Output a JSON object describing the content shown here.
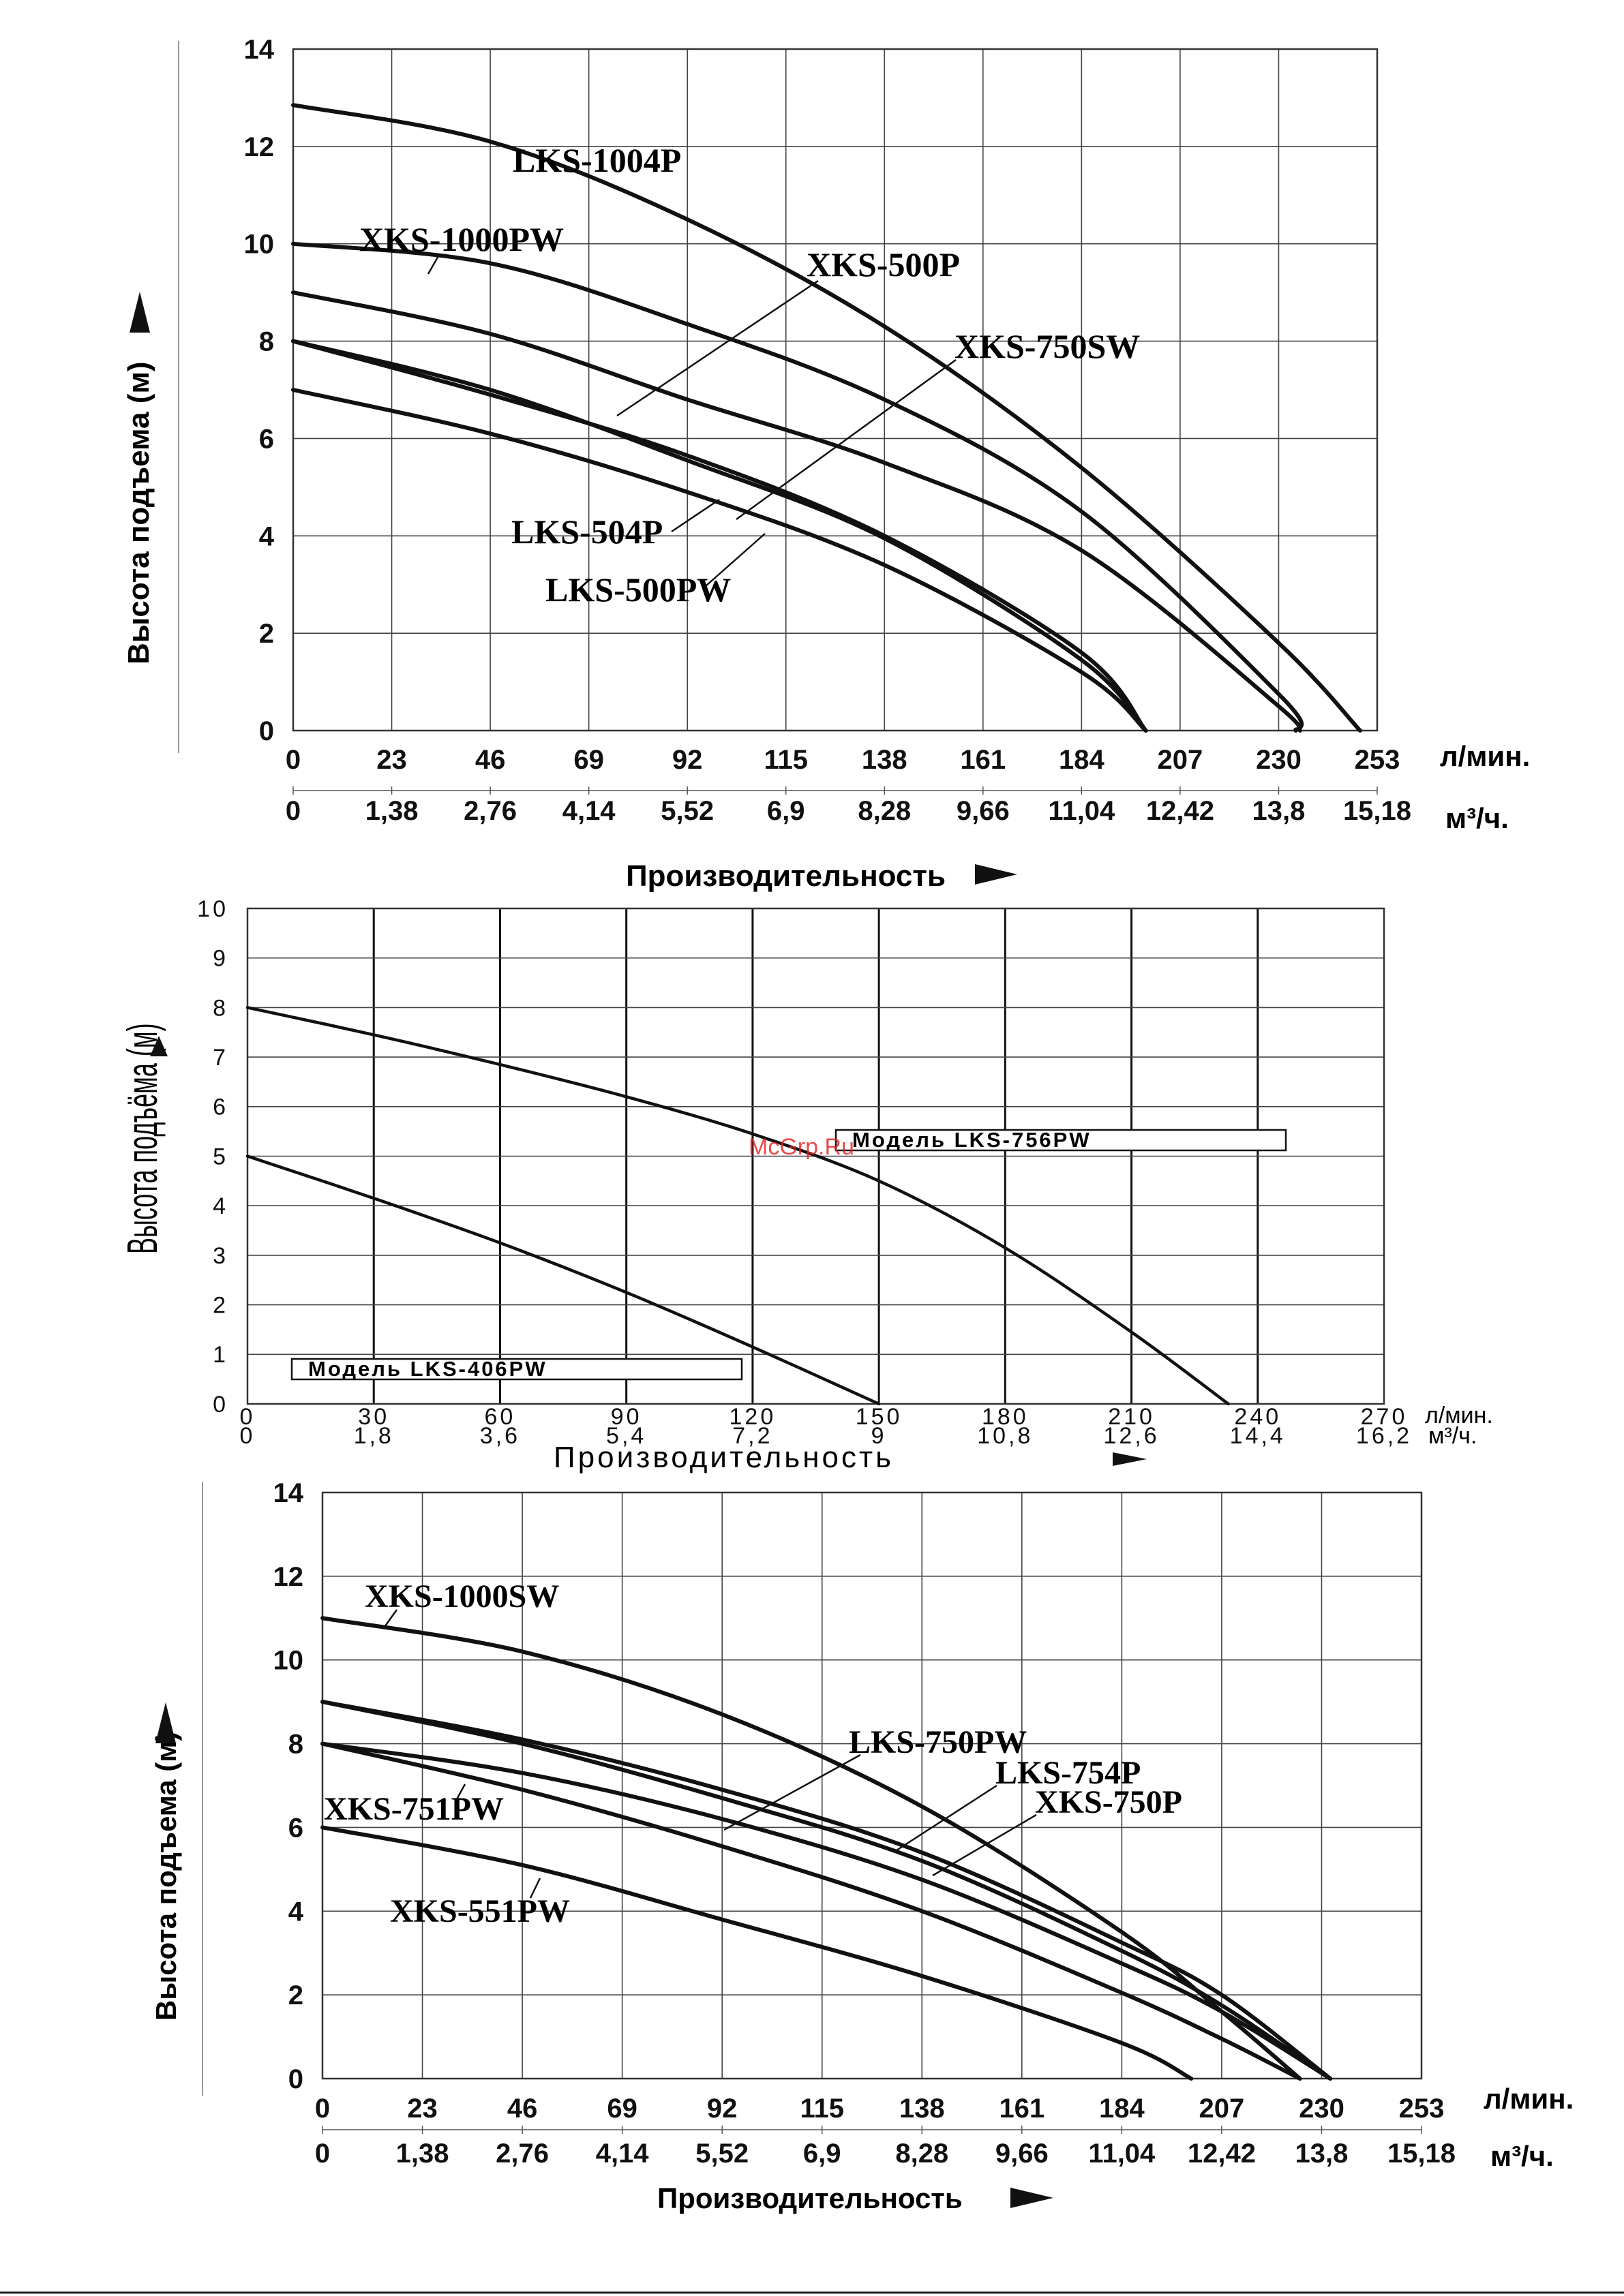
{
  "watermark": "McGrp.Ru",
  "chart_data": [
    {
      "type": "line",
      "ylabel": "Высота подъема (м)",
      "xlabel": "Производительность",
      "x_unit_primary": "л/мин.",
      "x_unit_secondary": "м³/ч.",
      "x_ticks_primary": [
        "0",
        "23",
        "46",
        "69",
        "92",
        "115",
        "138",
        "161",
        "184",
        "207",
        "230",
        "253"
      ],
      "x_ticks_secondary": [
        "0",
        "1,38",
        "2,76",
        "4,14",
        "5,52",
        "6,9",
        "8,28",
        "9,66",
        "11,04",
        "12,42",
        "13,8",
        "15,18"
      ],
      "y_ticks": [
        "0",
        "2",
        "4",
        "6",
        "8",
        "10",
        "12",
        "14"
      ],
      "xlim": [
        0,
        253
      ],
      "ylim": [
        0,
        14
      ],
      "series": [
        {
          "name": "LKS-1004P",
          "x": [
            0,
            46,
            92,
            138,
            184,
            230,
            249
          ],
          "y": [
            12.85,
            12.1,
            10.5,
            8.3,
            5.4,
            1.8,
            0
          ]
        },
        {
          "name": "XKS-1000PW",
          "x": [
            0,
            46,
            92,
            138,
            184,
            230,
            235
          ],
          "y": [
            10.0,
            9.6,
            8.35,
            6.8,
            4.5,
            0.75,
            0
          ]
        },
        {
          "name": "XKS-500P",
          "x": [
            0,
            46,
            92,
            138,
            184,
            230,
            234
          ],
          "y": [
            9.0,
            8.15,
            6.8,
            5.5,
            3.7,
            0.5,
            0
          ]
        },
        {
          "name": "XKS-750SW",
          "x": [
            0,
            46,
            92,
            138,
            184,
            199
          ],
          "y": [
            8.0,
            6.9,
            5.65,
            4.0,
            1.6,
            0
          ]
        },
        {
          "name": "LKS-504P",
          "x": [
            0,
            46,
            92,
            138,
            184,
            199
          ],
          "y": [
            8.0,
            7.0,
            5.55,
            3.95,
            1.45,
            0
          ]
        },
        {
          "name": "LKS-500PW",
          "x": [
            0,
            46,
            92,
            138,
            184,
            199
          ],
          "y": [
            7.0,
            6.1,
            4.9,
            3.4,
            1.2,
            0
          ]
        }
      ]
    },
    {
      "type": "line",
      "ylabel": "Высота подъёма (м)",
      "xlabel": "Производительность",
      "x_unit_primary": "л/мин.",
      "x_unit_secondary": "м³/ч.",
      "x_ticks_primary": [
        "0",
        "30",
        "60",
        "90",
        "120",
        "150",
        "180",
        "210",
        "240",
        "270"
      ],
      "x_ticks_secondary": [
        "0",
        "1,8",
        "3,6",
        "5,4",
        "7,2",
        "9",
        "10,8",
        "12,6",
        "14,4",
        "16,2"
      ],
      "y_ticks": [
        "0",
        "1",
        "2",
        "3",
        "4",
        "5",
        "6",
        "7",
        "8",
        "9",
        "10"
      ],
      "xlim": [
        0,
        270
      ],
      "ylim": [
        0,
        10
      ],
      "series": [
        {
          "name": "Модель LKS-756PW",
          "x": [
            0,
            30,
            60,
            90,
            120,
            150,
            180,
            210,
            233
          ],
          "y": [
            8.0,
            7.45,
            6.85,
            6.2,
            5.45,
            4.5,
            3.15,
            1.45,
            0
          ]
        },
        {
          "name": "Модель LKS-406PW",
          "x": [
            0,
            30,
            60,
            90,
            120,
            150
          ],
          "y": [
            5.0,
            4.15,
            3.25,
            2.25,
            1.15,
            0
          ]
        }
      ]
    },
    {
      "type": "line",
      "ylabel": "Высота подъема (м)",
      "xlabel": "Производительность",
      "x_unit_primary": "л/мин.",
      "x_unit_secondary": "м³/ч.",
      "x_ticks_primary": [
        "0",
        "23",
        "46",
        "69",
        "92",
        "115",
        "138",
        "161",
        "184",
        "207",
        "230",
        "253"
      ],
      "x_ticks_secondary": [
        "0",
        "1,38",
        "2,76",
        "4,14",
        "5,52",
        "6,9",
        "8,28",
        "9,66",
        "11,04",
        "12,42",
        "13,8",
        "15,18"
      ],
      "y_ticks": [
        "0",
        "2",
        "4",
        "6",
        "8",
        "10",
        "12",
        "14"
      ],
      "xlim": [
        0,
        253
      ],
      "ylim": [
        0,
        14
      ],
      "series": [
        {
          "name": "XKS-1000SW",
          "x": [
            0,
            46,
            92,
            138,
            184,
            207,
            225
          ],
          "y": [
            11.0,
            10.2,
            8.7,
            6.5,
            3.5,
            1.6,
            0
          ]
        },
        {
          "name": "LKS-750PW",
          "x": [
            0,
            46,
            92,
            138,
            184,
            207,
            232
          ],
          "y": [
            9.0,
            8.1,
            6.9,
            5.4,
            3.25,
            2.0,
            0
          ]
        },
        {
          "name": "LKS-754P",
          "x": [
            0,
            46,
            92,
            138,
            184,
            207,
            232
          ],
          "y": [
            9.0,
            8.0,
            6.7,
            5.2,
            3.05,
            1.75,
            0
          ]
        },
        {
          "name": "XKS-750P",
          "x": [
            0,
            46,
            92,
            138,
            184,
            207,
            232
          ],
          "y": [
            8.0,
            7.3,
            6.2,
            4.75,
            2.75,
            1.6,
            0
          ]
        },
        {
          "name": "XKS-751PW",
          "x": [
            0,
            46,
            92,
            138,
            184,
            207,
            225
          ],
          "y": [
            8.0,
            6.9,
            5.55,
            4.0,
            2.05,
            0.95,
            0
          ]
        },
        {
          "name": "XKS-551PW",
          "x": [
            0,
            46,
            92,
            138,
            184,
            200
          ],
          "y": [
            6.0,
            5.1,
            3.8,
            2.45,
            0.85,
            0
          ]
        }
      ]
    }
  ],
  "labels": {
    "c1": [
      "LKS-1004P",
      "XKS-1000PW",
      "XKS-500P",
      "XKS-750SW",
      "LKS-504P",
      "LKS-500PW"
    ],
    "c2": [
      "Модель LKS-756PW",
      "Модель LKS-406PW"
    ],
    "c3": [
      "XKS-1000SW",
      "LKS-750PW",
      "LKS-754P",
      "XKS-750P",
      "XKS-751PW",
      "XKS-551PW"
    ]
  }
}
